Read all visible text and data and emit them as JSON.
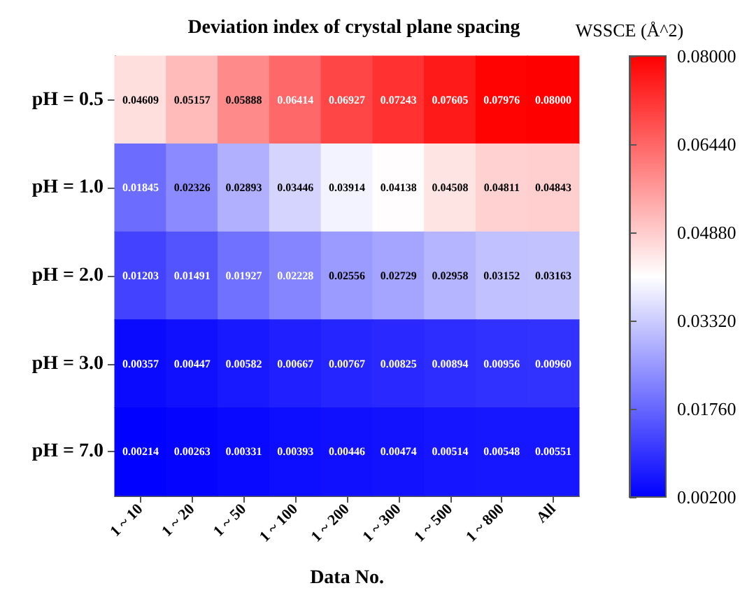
{
  "chart_data": {
    "type": "heatmap",
    "title": "Deviation index of crystal plane spacing",
    "xlabel": "Data No.",
    "clabel": "WSSCE (Å^2)",
    "categories": [
      "1 ~ 10",
      "1 ~ 20",
      "1 ~ 50",
      "1 ~ 100",
      "1 ~ 200",
      "1 ~ 300",
      "1 ~ 500",
      "1 ~ 800",
      "All"
    ],
    "y_categories": [
      "pH = 0.5",
      "pH = 1.0",
      "pH = 2.0",
      "pH = 3.0",
      "pH = 7.0"
    ],
    "cells": [
      [
        0.04609,
        0.05157,
        0.05888,
        0.06414,
        0.06927,
        0.07243,
        0.07605,
        0.07976,
        0.08
      ],
      [
        0.01845,
        0.02326,
        0.02893,
        0.03446,
        0.03914,
        0.04138,
        0.04508,
        0.04811,
        0.04843
      ],
      [
        0.01203,
        0.01491,
        0.01927,
        0.02228,
        0.02556,
        0.02729,
        0.02958,
        0.03152,
        0.03163
      ],
      [
        0.00357,
        0.00447,
        0.00582,
        0.00667,
        0.00767,
        0.00825,
        0.00894,
        0.00956,
        0.0096
      ],
      [
        0.00214,
        0.00263,
        0.00331,
        0.00393,
        0.00446,
        0.00474,
        0.00514,
        0.00548,
        0.00551
      ]
    ],
    "cell_labels": [
      [
        "0.04609",
        "0.05157",
        "0.05888",
        "0.06414",
        "0.06927",
        "0.07243",
        "0.07605",
        "0.07976",
        "0.08000"
      ],
      [
        "0.01845",
        "0.02326",
        "0.02893",
        "0.03446",
        "0.03914",
        "0.04138",
        "0.04508",
        "0.04811",
        "0.04843"
      ],
      [
        "0.01203",
        "0.01491",
        "0.01927",
        "0.02228",
        "0.02556",
        "0.02729",
        "0.02958",
        "0.03152",
        "0.03163"
      ],
      [
        "0.00357",
        "0.00447",
        "0.00582",
        "0.00667",
        "0.00767",
        "0.00825",
        "0.00894",
        "0.00956",
        "0.00960"
      ],
      [
        "0.00214",
        "0.00263",
        "0.00331",
        "0.00393",
        "0.00446",
        "0.00474",
        "0.00514",
        "0.00548",
        "0.00551"
      ]
    ],
    "clim": [
      0.002,
      0.08
    ],
    "cticks": [
      {
        "value": 0.002,
        "label": "0.00200"
      },
      {
        "value": 0.0176,
        "label": "0.01760"
      },
      {
        "value": 0.0332,
        "label": "0.03320"
      },
      {
        "value": 0.0488,
        "label": "0.04880"
      },
      {
        "value": 0.0644,
        "label": "0.06440"
      },
      {
        "value": 0.08,
        "label": "0.08000"
      }
    ],
    "colors": [
      "#0000ff",
      "#ffffff",
      "#ff0000"
    ]
  }
}
